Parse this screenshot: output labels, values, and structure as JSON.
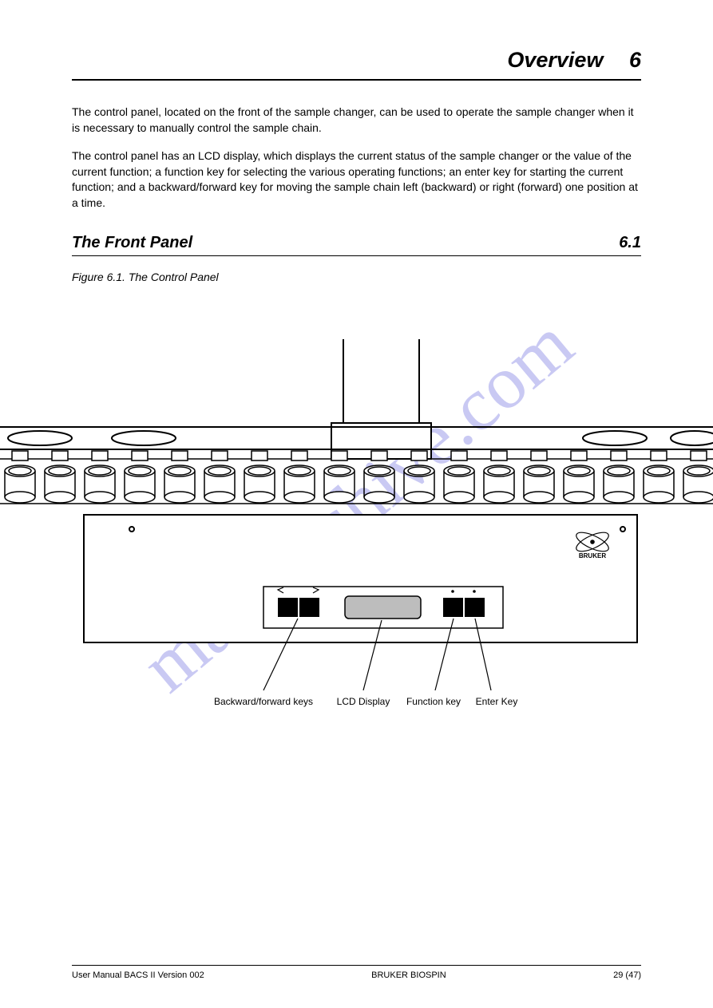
{
  "title": {
    "text": "Overview",
    "chapter": "6"
  },
  "paragraphs": {
    "intro1": "The control panel, located on the front of the sample changer, can be used to operate the sample changer when it is necessary to manually control the sample chain.",
    "intro2": "The control panel has an LCD display, which displays the current status of the sample changer or the value of the current function; a function key for selecting the various operating functions; an enter key for starting the current function; and a backward/forward key for moving the sample chain left (backward) or right (forward) one position at a time."
  },
  "sections": {
    "frontpanel": {
      "heading": "The Front Panel",
      "number": "6.1"
    }
  },
  "figure": {
    "caption": "Figure 6.1.",
    "caption_text": "The Control Panel",
    "labels": {
      "backward_forward": "Backward/forward keys",
      "lcd": "LCD Display",
      "function": "Function key",
      "enter": "Enter Key"
    }
  },
  "footer": {
    "left": "User Manual BACS II Version 002",
    "center": "BRUKER BIOSPIN",
    "right": "29 (47)"
  },
  "colors": {
    "black": "#000000",
    "white": "#ffffff",
    "lcd_fill": "#bdbdbd"
  }
}
